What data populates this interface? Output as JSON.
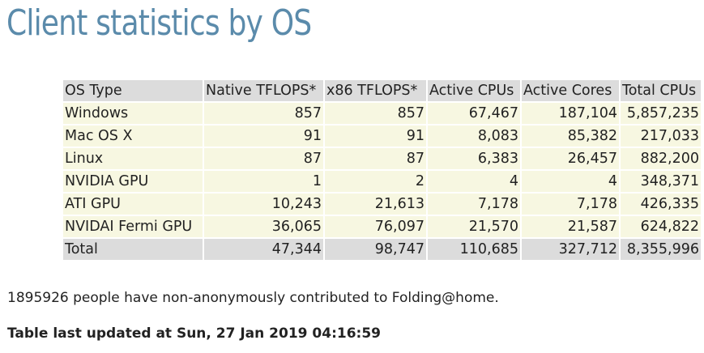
{
  "page": {
    "title": "Client statistics by OS"
  },
  "table": {
    "headers": [
      "OS Type",
      "Native TFLOPS*",
      "x86 TFLOPS*",
      "Active CPUs",
      "Active Cores",
      "Total CPUs"
    ],
    "rows": [
      [
        "Windows",
        "857",
        "857",
        "67,467",
        "187,104",
        "5,857,235"
      ],
      [
        "Mac OS X",
        "91",
        "91",
        "8,083",
        "85,382",
        "217,033"
      ],
      [
        "Linux",
        "87",
        "87",
        "6,383",
        "26,457",
        "882,200"
      ],
      [
        "NVIDIA GPU",
        "1",
        "2",
        "4",
        "4",
        "348,371"
      ],
      [
        "ATI GPU",
        "10,243",
        "21,613",
        "7,178",
        "7,178",
        "426,335"
      ],
      [
        "NVIDAI Fermi GPU",
        "36,065",
        "76,097",
        "21,570",
        "21,587",
        "624,822"
      ]
    ],
    "total": [
      "Total",
      "47,344",
      "98,747",
      "110,685",
      "327,712",
      "8,355,996"
    ]
  },
  "notes": {
    "contributors": "1895926 people have non-anonymously contributed to Folding@home.",
    "updated": "Table last updated at Sun, 27 Jan 2019 04:16:59"
  },
  "colors": {
    "title": "#5b8bab",
    "header_bg": "#dcdcdc",
    "row_bg": "#f7f7e1"
  }
}
